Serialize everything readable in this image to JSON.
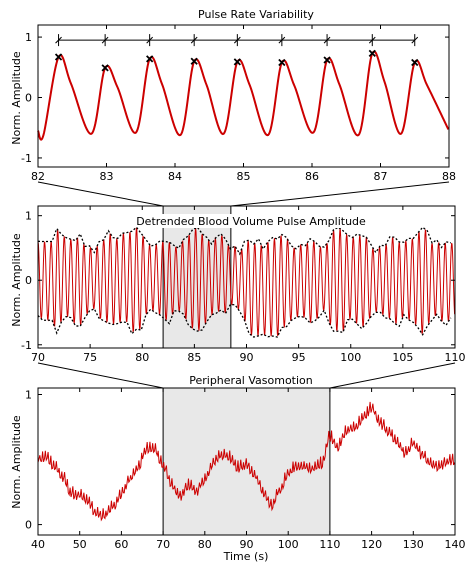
{
  "colors": {
    "signal": "#cc0000",
    "envelope": "#000000",
    "highlight": "#e8e8e8",
    "axis": "#000000"
  },
  "chart_data": [
    {
      "id": "prv",
      "type": "line",
      "title": "Pulse Rate Variability",
      "xlabel": "",
      "ylabel": "Norm. Amplitude",
      "xlim": [
        82,
        88
      ],
      "ylim": [
        -1.15,
        1.2
      ],
      "x_ticks": [
        82,
        83,
        84,
        85,
        86,
        87,
        88
      ],
      "x_tick_labels": [
        "82",
        "83",
        "84",
        "85",
        "86",
        "87",
        "88"
      ],
      "y_ticks": [
        -1,
        0,
        1
      ],
      "y_tick_labels": [
        "-1",
        "0",
        "1"
      ],
      "peaks": [
        {
          "x": 82.3,
          "y": 0.67
        },
        {
          "x": 82.98,
          "y": 0.49
        },
        {
          "x": 83.63,
          "y": 0.64
        },
        {
          "x": 84.28,
          "y": 0.6
        },
        {
          "x": 84.91,
          "y": 0.59
        },
        {
          "x": 85.56,
          "y": 0.58
        },
        {
          "x": 86.22,
          "y": 0.62
        },
        {
          "x": 86.88,
          "y": 0.73
        },
        {
          "x": 87.5,
          "y": 0.58
        }
      ],
      "interval_bar_y": 0.95
    },
    {
      "id": "bvp",
      "type": "line",
      "title": "Detrended Blood Volume Pulse Amplitude",
      "xlabel": "",
      "ylabel": "Norm. Amplitude",
      "xlim": [
        70,
        110
      ],
      "ylim": [
        -1.05,
        1.15
      ],
      "x_ticks": [
        70,
        75,
        80,
        85,
        90,
        95,
        100,
        105,
        110
      ],
      "x_tick_labels": [
        "70",
        "75",
        "80",
        "85",
        "90",
        "95",
        "100",
        "105",
        "110"
      ],
      "y_ticks": [
        -1,
        0,
        1
      ],
      "y_tick_labels": [
        "-1",
        "0",
        "1"
      ],
      "highlight_range": [
        82,
        88.5
      ],
      "beat_period": 0.63
    },
    {
      "id": "vaso",
      "type": "line",
      "title": "Peripheral Vasomotion",
      "xlabel": "Time (s)",
      "ylabel": "Norm. Amplitude",
      "xlim": [
        40,
        140
      ],
      "ylim": [
        -0.08,
        1.05
      ],
      "x_ticks": [
        40,
        50,
        60,
        70,
        80,
        90,
        100,
        110,
        120,
        130,
        140
      ],
      "x_tick_labels": [
        "40",
        "50",
        "60",
        "70",
        "80",
        "90",
        "100",
        "110",
        "120",
        "130",
        "140"
      ],
      "y_ticks": [
        0,
        1
      ],
      "y_tick_labels": [
        "0",
        "1"
      ],
      "highlight_range": [
        70,
        110
      ],
      "trend": [
        [
          40,
          0.5
        ],
        [
          42,
          0.52
        ],
        [
          44,
          0.45
        ],
        [
          46,
          0.36
        ],
        [
          48,
          0.24
        ],
        [
          50,
          0.22
        ],
        [
          52,
          0.18
        ],
        [
          54,
          0.08
        ],
        [
          56,
          0.07
        ],
        [
          58,
          0.14
        ],
        [
          60,
          0.24
        ],
        [
          62,
          0.35
        ],
        [
          64,
          0.44
        ],
        [
          66,
          0.58
        ],
        [
          68,
          0.58
        ],
        [
          70,
          0.46
        ],
        [
          72,
          0.3
        ],
        [
          74,
          0.22
        ],
        [
          76,
          0.3
        ],
        [
          78,
          0.26
        ],
        [
          80,
          0.35
        ],
        [
          82,
          0.48
        ],
        [
          84,
          0.54
        ],
        [
          86,
          0.52
        ],
        [
          88,
          0.44
        ],
        [
          90,
          0.46
        ],
        [
          92,
          0.38
        ],
        [
          94,
          0.25
        ],
        [
          96,
          0.14
        ],
        [
          98,
          0.26
        ],
        [
          100,
          0.4
        ],
        [
          102,
          0.45
        ],
        [
          104,
          0.44
        ],
        [
          106,
          0.43
        ],
        [
          108,
          0.47
        ],
        [
          110,
          0.68
        ],
        [
          112,
          0.6
        ],
        [
          114,
          0.72
        ],
        [
          116,
          0.75
        ],
        [
          118,
          0.82
        ],
        [
          120,
          0.9
        ],
        [
          122,
          0.78
        ],
        [
          124,
          0.72
        ],
        [
          126,
          0.64
        ],
        [
          128,
          0.55
        ],
        [
          130,
          0.62
        ],
        [
          132,
          0.54
        ],
        [
          134,
          0.47
        ],
        [
          136,
          0.44
        ],
        [
          138,
          0.48
        ],
        [
          140,
          0.5
        ]
      ]
    }
  ]
}
